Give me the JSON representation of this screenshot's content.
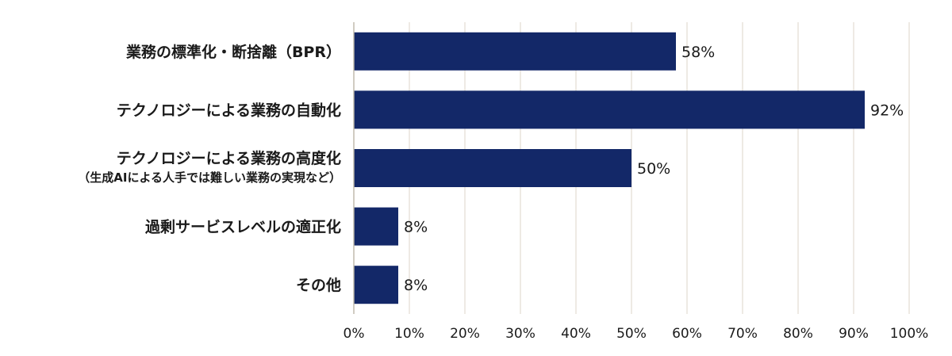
{
  "chart_data": {
    "type": "bar",
    "orientation": "horizontal",
    "categories": [
      [
        "業務の標準化・断捨離（BPR）"
      ],
      [
        "テクノロジーによる業務の自動化"
      ],
      [
        "テクノロジーによる業務の高度化",
        "（生成AIによる人手では難しい業務の実現など）"
      ],
      [
        "過剰サービスレベルの適正化"
      ],
      [
        "その他"
      ]
    ],
    "values": [
      58,
      92,
      50,
      8,
      8
    ],
    "value_labels": [
      "58%",
      "92%",
      "50%",
      "8%",
      "8%"
    ],
    "xlim": [
      0,
      100
    ],
    "x_ticks": [
      0,
      10,
      20,
      30,
      40,
      50,
      60,
      70,
      80,
      90,
      100
    ],
    "x_tick_labels": [
      "0%",
      "10%",
      "20%",
      "30%",
      "40%",
      "50%",
      "60%",
      "70%",
      "80%",
      "90%",
      "100%"
    ],
    "grid": true,
    "bar_color": "#132868",
    "grid_color": "#e2ddd3",
    "title": "",
    "xlabel": "",
    "ylabel": ""
  }
}
